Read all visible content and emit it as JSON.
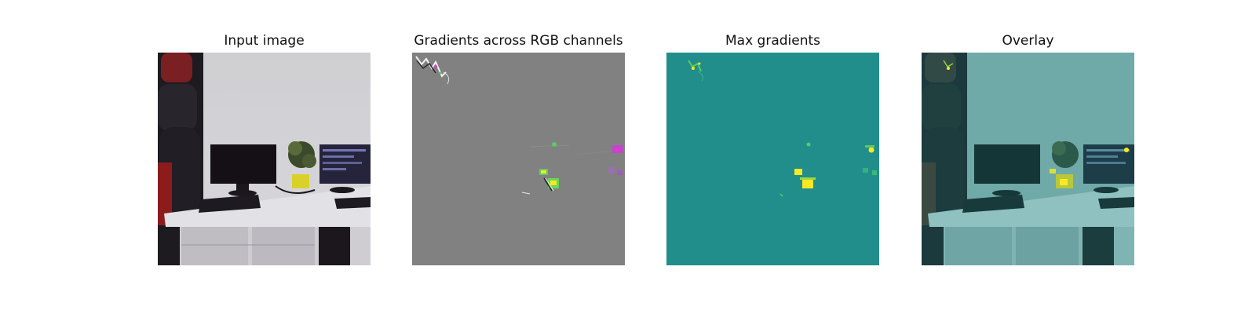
{
  "panels": [
    {
      "title": "Input image",
      "kind": "photo"
    },
    {
      "title": "Gradients across RGB channels",
      "kind": "rgb-gradients"
    },
    {
      "title": "Max gradients",
      "kind": "max-gradients"
    },
    {
      "title": "Overlay",
      "kind": "overlay"
    }
  ],
  "colors": {
    "background": "#ffffff",
    "rgb_gradient_base": "#808080",
    "max_gradient_base": "#21918c",
    "highlight_yellow": "#fde725",
    "highlight_green": "#5ec962",
    "highlight_magenta": "#d63cd6"
  }
}
